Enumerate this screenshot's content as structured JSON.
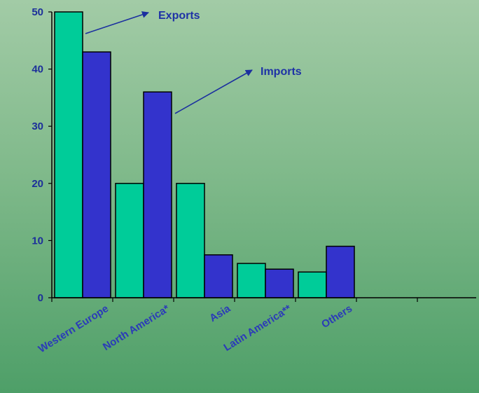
{
  "chart_data": {
    "type": "bar",
    "categories": [
      "Western Europe",
      "North America*",
      "Asia",
      "Latin America**",
      "Others"
    ],
    "series": [
      {
        "name": "Exports",
        "values": [
          50,
          20,
          20,
          6,
          4.5
        ],
        "color": "#00cc99"
      },
      {
        "name": "Imports",
        "values": [
          43,
          36,
          7.5,
          5,
          9
        ],
        "color": "#3333cc"
      }
    ],
    "ylim": [
      0,
      50
    ],
    "yticks": [
      "0",
      "10",
      "20",
      "30",
      "40",
      "50"
    ],
    "annotations": [
      "Exports",
      "Imports"
    ],
    "grid": false,
    "legend": "none"
  }
}
